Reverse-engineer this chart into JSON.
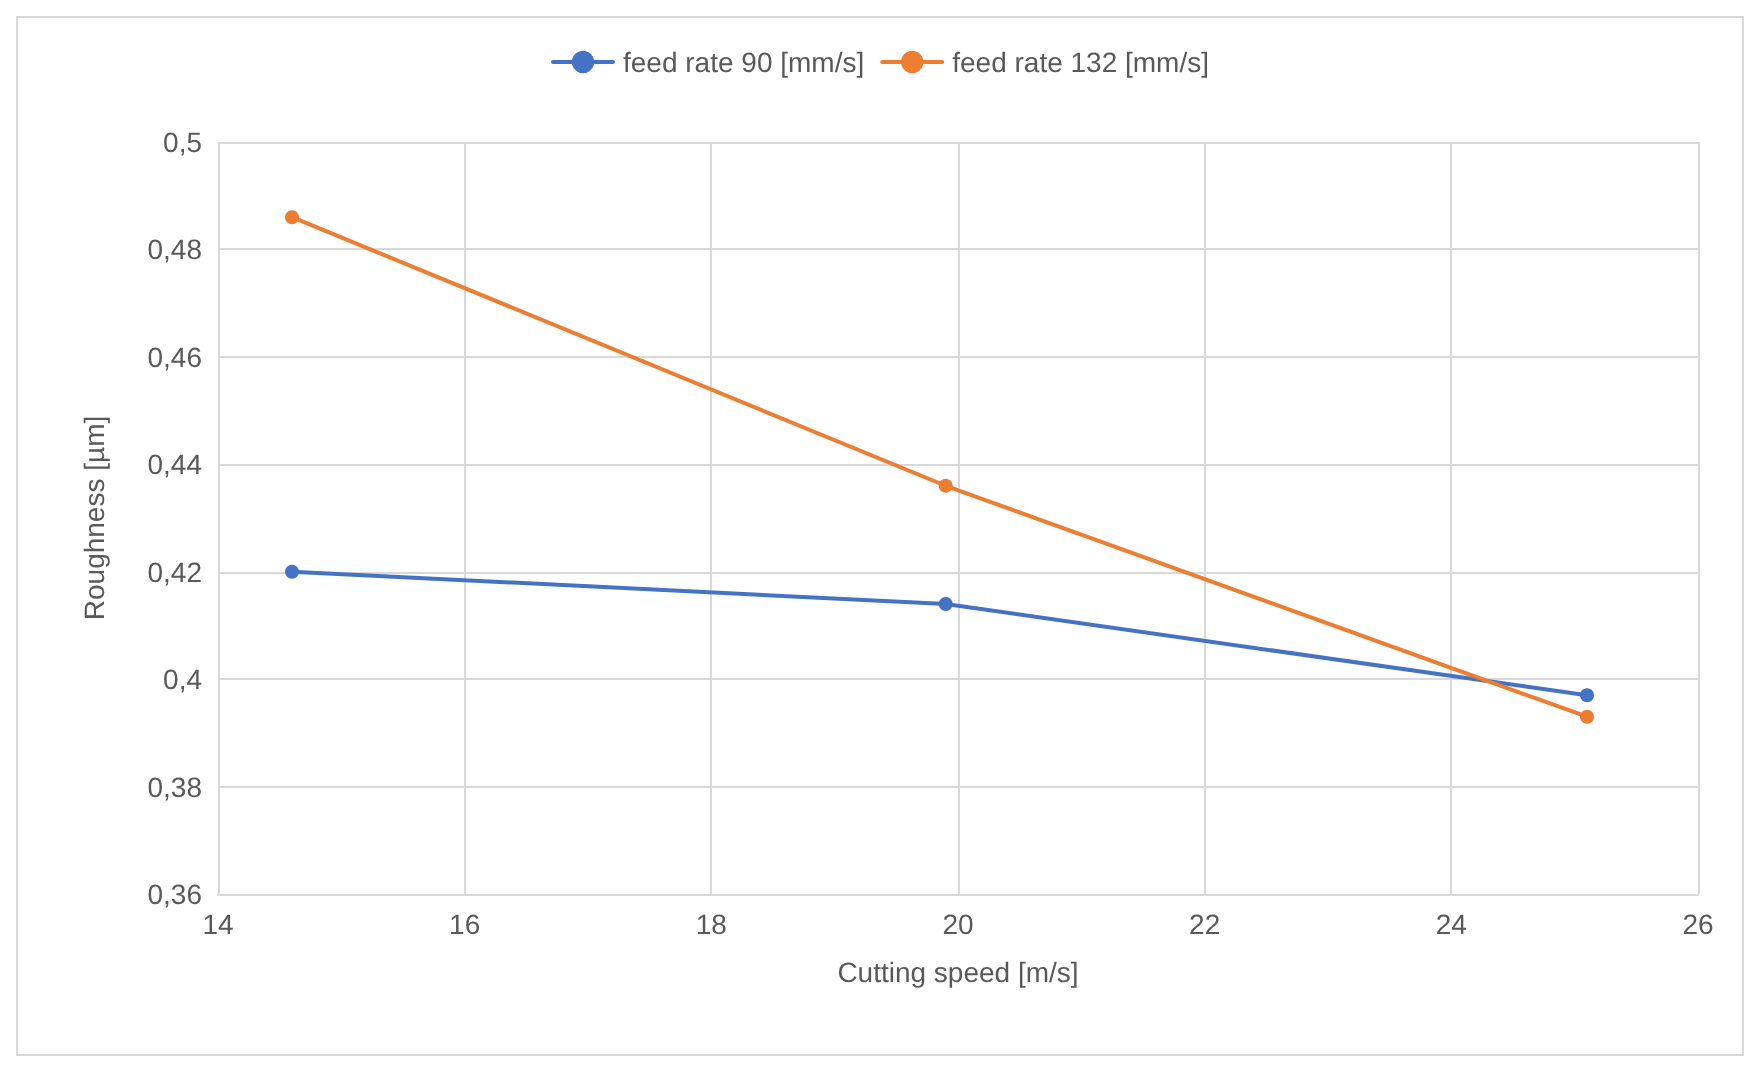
{
  "chart_data": {
    "type": "line",
    "xlabel": "Cutting speed [m/s]",
    "ylabel": "Roughness [µm]",
    "x": [
      14.6,
      19.9,
      25.1
    ],
    "series": [
      {
        "name": "feed rate 90 [mm/s]",
        "color": "#4472c4",
        "values": [
          0.42,
          0.414,
          0.397
        ]
      },
      {
        "name": "feed rate 132 [mm/s]",
        "color": "#ed7d31",
        "values": [
          0.486,
          0.436,
          0.393
        ]
      }
    ],
    "xlim": [
      14,
      26
    ],
    "xticks": [
      14,
      16,
      18,
      20,
      22,
      24,
      26
    ],
    "ylim": [
      0.36,
      0.5
    ],
    "yticks": [
      {
        "value": 0.36,
        "label": "0,36"
      },
      {
        "value": 0.38,
        "label": "0,38"
      },
      {
        "value": 0.4,
        "label": "0,4"
      },
      {
        "value": 0.42,
        "label": "0,42"
      },
      {
        "value": 0.44,
        "label": "0,44"
      },
      {
        "value": 0.46,
        "label": "0,46"
      },
      {
        "value": 0.48,
        "label": "0,48"
      },
      {
        "value": 0.5,
        "label": "0,5"
      }
    ],
    "grid": true,
    "legend": "top",
    "marker": "circle",
    "line_style": "solid"
  }
}
